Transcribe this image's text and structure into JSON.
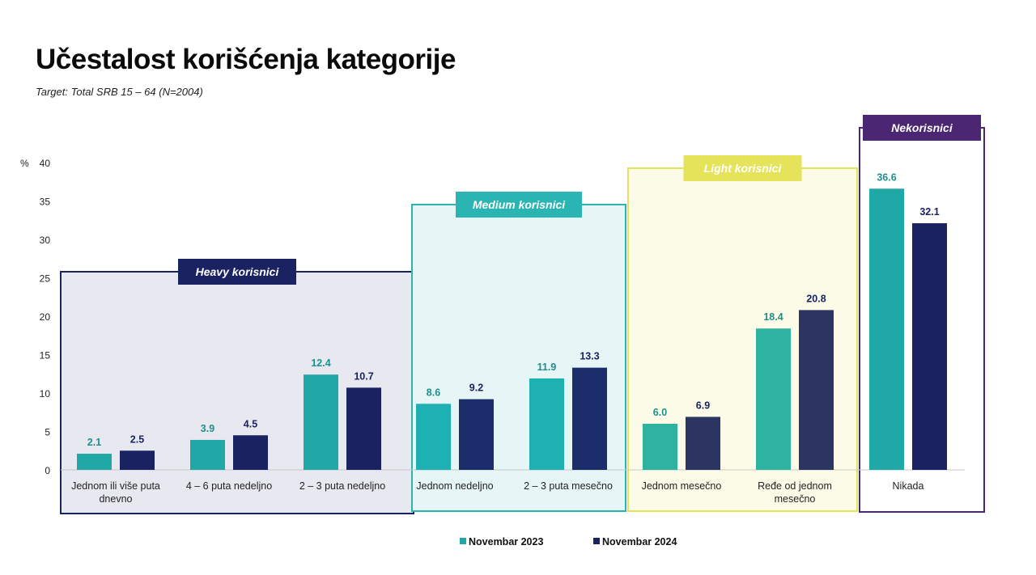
{
  "title": "Učestalost korišćenja kategorije",
  "subtitle": "Target: Total SRB 15 – 64 (N=2004)",
  "colors": {
    "series_2023": "#1fa8a5",
    "series_2024": "#1b2262",
    "heavy": "#1b2262",
    "medium": "#2bb5b2",
    "light": "#e5e35a",
    "nekorisnici": "#4b2672"
  },
  "chart_data": {
    "type": "bar",
    "ylabel": "%",
    "ylim": [
      0,
      40
    ],
    "yticks": [
      0,
      5,
      10,
      15,
      20,
      25,
      30,
      35,
      40
    ],
    "categories": [
      "Jednom ili više puta dnevno",
      "4 – 6 puta nedeljno",
      "2 – 3 puta nedeljno",
      "Jednom nedeljno",
      "2 – 3 puta mesečno",
      "Jednom mesečno",
      "Ređe od jednom mesečno",
      "Nikada"
    ],
    "category_lines": [
      [
        "Jednom ili više puta",
        "dnevno"
      ],
      [
        "4 – 6 puta nedeljno"
      ],
      [
        "2 – 3 puta nedeljno"
      ],
      [
        "Jednom nedeljno"
      ],
      [
        "2 – 3 puta mesečno"
      ],
      [
        "Jednom mesečno"
      ],
      [
        "Ređe od jednom",
        "mesečno"
      ],
      [
        "Nikada"
      ]
    ],
    "series": [
      {
        "name": "Novembar 2023",
        "values": [
          2.1,
          3.9,
          12.4,
          8.6,
          11.9,
          6.0,
          18.4,
          36.6
        ],
        "labels": [
          "2.1",
          "3.9",
          "12.4",
          "8.6",
          "11.9",
          "6.0",
          "18.4",
          "36.6"
        ]
      },
      {
        "name": "Novembar 2024",
        "values": [
          2.5,
          4.5,
          10.7,
          9.2,
          13.3,
          6.9,
          20.8,
          32.1
        ],
        "labels": [
          "2.5",
          "4.5",
          "10.7",
          "9.2",
          "13.3",
          "6.9",
          "20.8",
          "32.1"
        ]
      }
    ],
    "groups": [
      {
        "label": "Heavy korisnici",
        "categories": [
          0,
          1,
          2
        ],
        "color_key": "heavy"
      },
      {
        "label": "Medium korisnici",
        "categories": [
          3,
          4
        ],
        "color_key": "medium"
      },
      {
        "label": "Light korisnici",
        "categories": [
          5,
          6
        ],
        "color_key": "light"
      },
      {
        "label": "Nekorisnici",
        "categories": [
          7
        ],
        "color_key": "nekorisnici"
      }
    ],
    "legend_position": "bottom-center",
    "grid": false
  }
}
